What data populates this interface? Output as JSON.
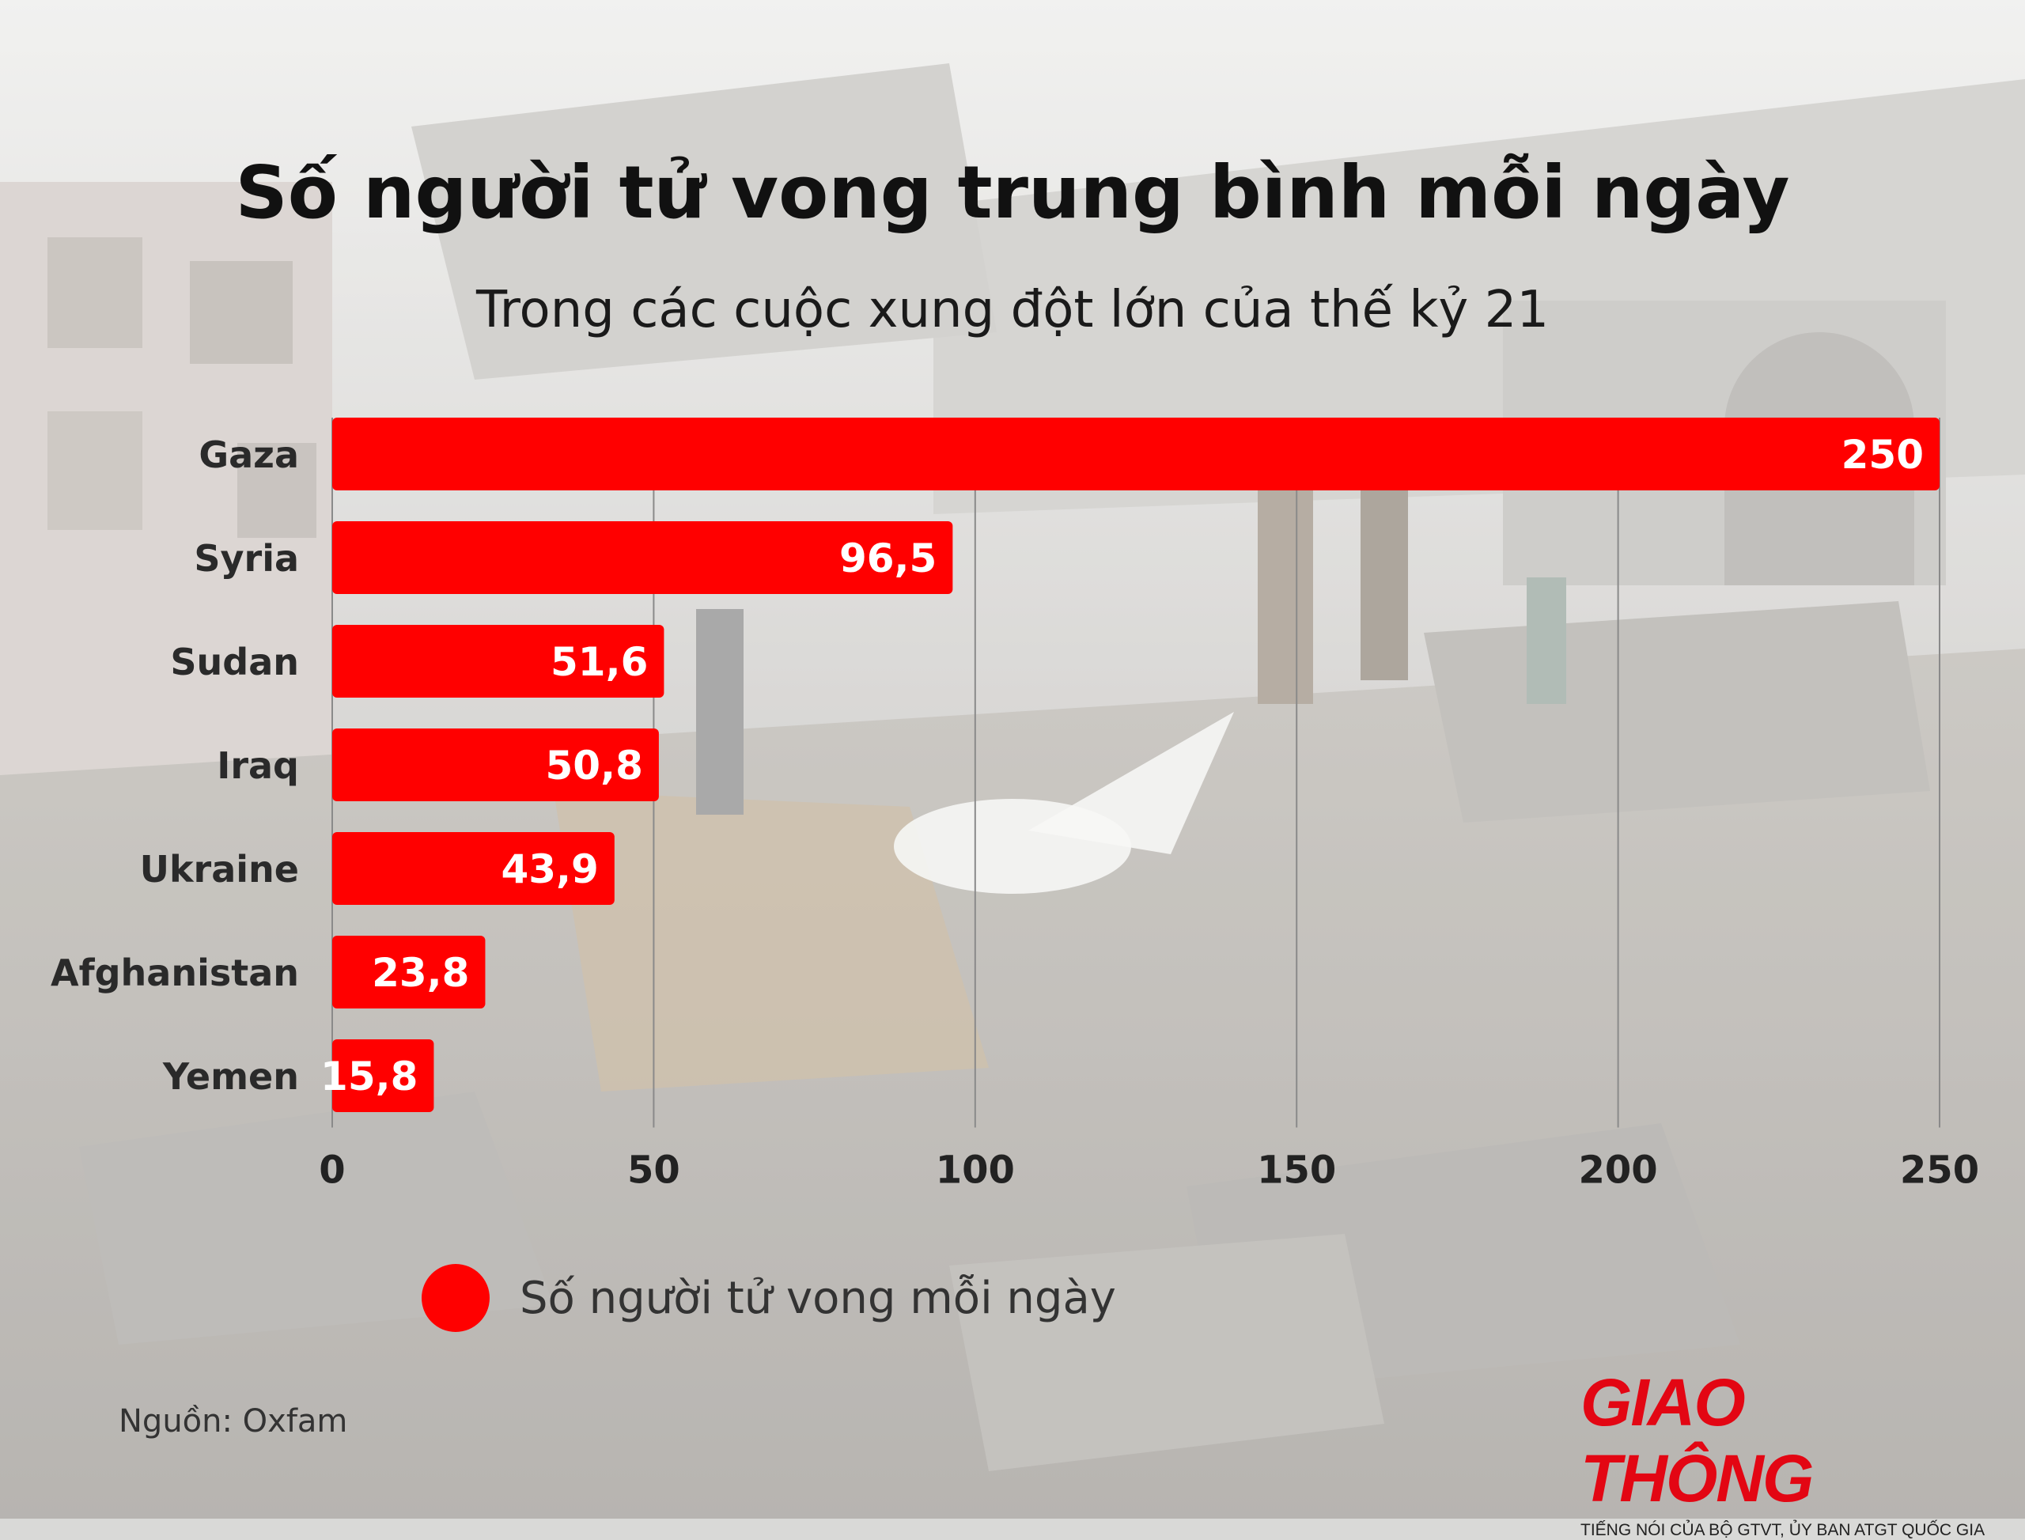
{
  "colors": {
    "bar": "#ff0000",
    "grid": "#8a8a8a",
    "text": "#111111"
  },
  "header": {
    "title": "Số người tử vong trung bình mỗi ngày",
    "subtitle": "Trong các cuộc xung đột lớn của thế kỷ 21"
  },
  "chart_data": {
    "type": "bar",
    "orientation": "horizontal",
    "title": "Số người tử vong trung bình mỗi ngày",
    "subtitle": "Trong các cuộc xung đột lớn của thế kỷ 21",
    "categories": [
      "Gaza",
      "Syria",
      "Sudan",
      "Iraq",
      "Ukraine",
      "Afghanistan",
      "Yemen"
    ],
    "values": [
      250,
      96.5,
      51.6,
      50.8,
      43.9,
      23.8,
      15.8
    ],
    "value_labels": [
      "250",
      "96,5",
      "51,6",
      "50,8",
      "43,9",
      "23,8",
      "15,8"
    ],
    "xlim": [
      0,
      250
    ],
    "x_ticks": [
      0,
      50,
      100,
      150,
      200,
      250
    ],
    "grid": true,
    "legend": {
      "position": "bottom-left",
      "entries": [
        "Số người tử vong mỗi ngày"
      ]
    },
    "series": [
      {
        "name": "Số người tử vong mỗi ngày",
        "values": [
          250,
          96.5,
          51.6,
          50.8,
          43.9,
          23.8,
          15.8
        ]
      }
    ]
  },
  "legend": {
    "label": "Số người tử vong mỗi ngày"
  },
  "source": "Nguồn: Oxfam",
  "logo": {
    "name": "GIAO THÔNG",
    "tagline": "TIẾNG NÓI CỦA BỘ GTVT, ỦY BAN ATGT QUỐC GIA"
  }
}
